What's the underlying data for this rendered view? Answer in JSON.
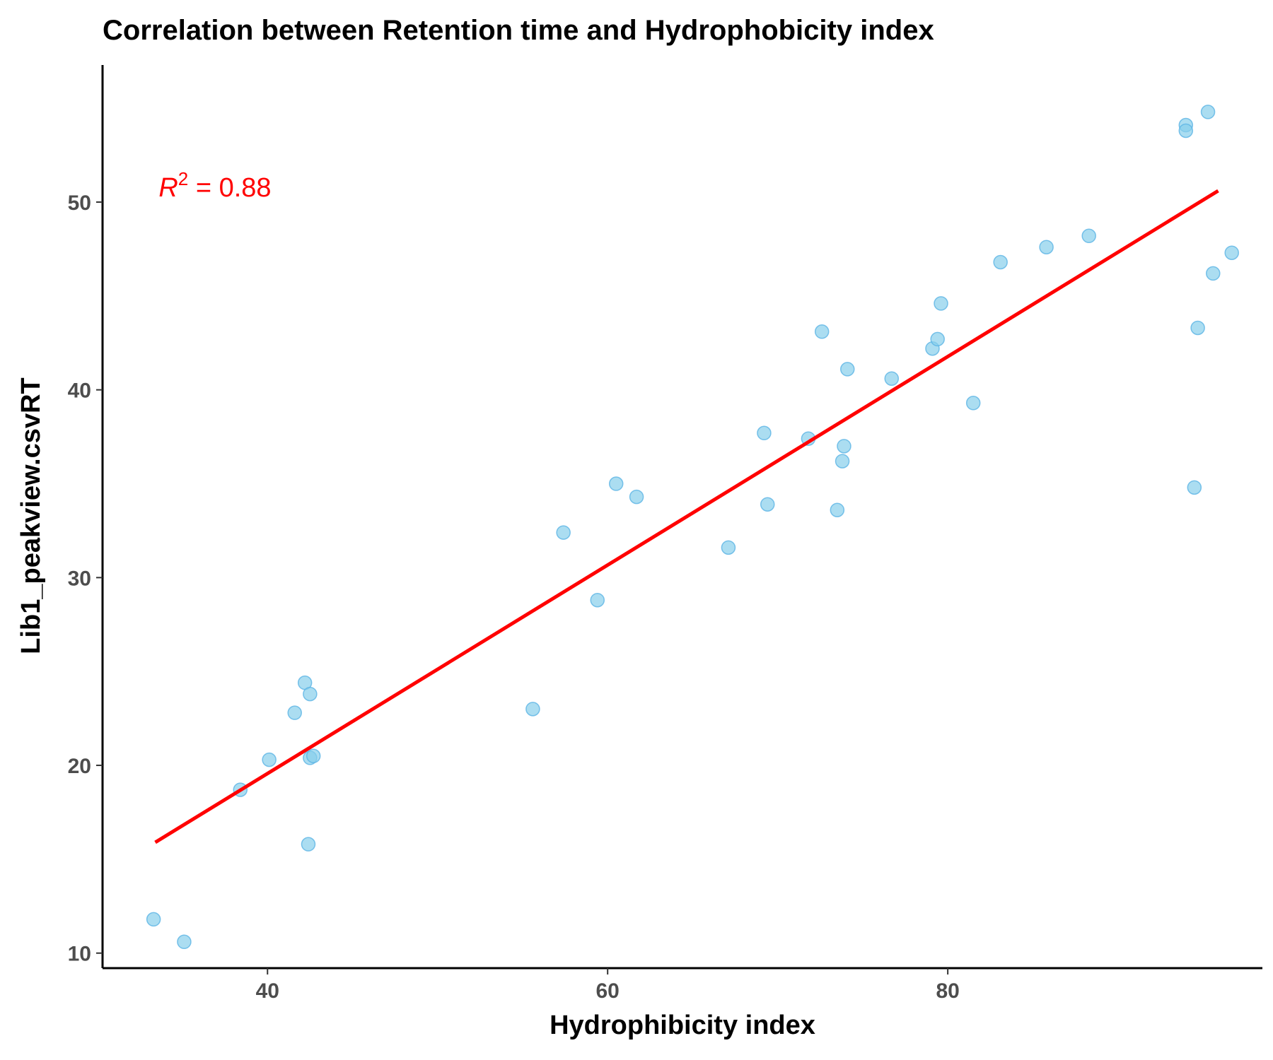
{
  "chart_data": {
    "type": "scatter",
    "title": "Correlation between Retention time and Hydrophobicity index",
    "xlabel": "Hydrophibicity index",
    "ylabel": "Lib1_peakview.csvRT",
    "xlim": [
      30.3,
      98.5
    ],
    "ylim": [
      9.2,
      57.3
    ],
    "xticks": [
      40,
      60,
      80
    ],
    "yticks": [
      10,
      20,
      30,
      40,
      50
    ],
    "grid": false,
    "point_color": "#87CEEB",
    "point_stroke": "#5BB4E5",
    "fit_color": "#FF0000",
    "annotation": {
      "symbol": "R",
      "exponent": "2",
      "text": " = 0.88",
      "x": 33.6,
      "y": 50.3,
      "color": "#FF0000"
    },
    "fit_line": {
      "x": [
        33.4,
        95.9
      ],
      "y": [
        15.9,
        50.6
      ]
    },
    "points": [
      {
        "x": 33.3,
        "y": 11.8
      },
      {
        "x": 35.1,
        "y": 10.6
      },
      {
        "x": 38.4,
        "y": 18.7
      },
      {
        "x": 40.1,
        "y": 20.3
      },
      {
        "x": 41.6,
        "y": 22.8
      },
      {
        "x": 42.2,
        "y": 24.4
      },
      {
        "x": 42.5,
        "y": 23.8
      },
      {
        "x": 42.5,
        "y": 20.4
      },
      {
        "x": 42.7,
        "y": 20.5
      },
      {
        "x": 42.4,
        "y": 15.8
      },
      {
        "x": 55.6,
        "y": 23.0
      },
      {
        "x": 57.4,
        "y": 32.4
      },
      {
        "x": 59.4,
        "y": 28.8
      },
      {
        "x": 60.5,
        "y": 35.0
      },
      {
        "x": 61.7,
        "y": 34.3
      },
      {
        "x": 67.1,
        "y": 31.6
      },
      {
        "x": 69.2,
        "y": 37.7
      },
      {
        "x": 69.4,
        "y": 33.9
      },
      {
        "x": 71.8,
        "y": 37.4
      },
      {
        "x": 72.6,
        "y": 43.1
      },
      {
        "x": 73.5,
        "y": 33.6
      },
      {
        "x": 73.8,
        "y": 36.2
      },
      {
        "x": 73.9,
        "y": 37.0
      },
      {
        "x": 74.1,
        "y": 41.1
      },
      {
        "x": 76.7,
        "y": 40.6
      },
      {
        "x": 79.1,
        "y": 42.2
      },
      {
        "x": 79.4,
        "y": 42.7
      },
      {
        "x": 79.6,
        "y": 44.6
      },
      {
        "x": 81.5,
        "y": 39.3
      },
      {
        "x": 83.1,
        "y": 46.8
      },
      {
        "x": 85.8,
        "y": 47.6
      },
      {
        "x": 88.3,
        "y": 48.2
      },
      {
        "x": 94.0,
        "y": 54.1
      },
      {
        "x": 94.0,
        "y": 53.8
      },
      {
        "x": 94.5,
        "y": 34.8
      },
      {
        "x": 94.7,
        "y": 43.3
      },
      {
        "x": 95.3,
        "y": 54.8
      },
      {
        "x": 95.6,
        "y": 46.2
      },
      {
        "x": 96.7,
        "y": 47.3
      }
    ]
  }
}
